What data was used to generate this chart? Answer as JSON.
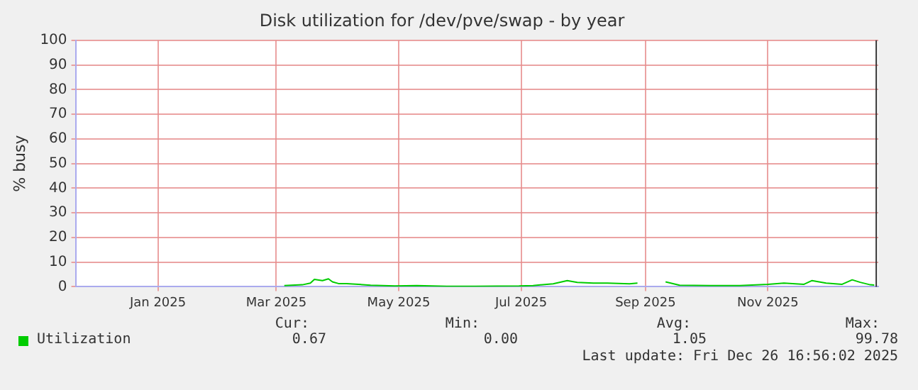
{
  "chart_data": {
    "type": "line",
    "title": "Disk utilization for /dev/pve/swap - by year",
    "ylabel": "% busy",
    "xlim": [
      "2024-11-21",
      "2025-12-26"
    ],
    "xticks": [
      {
        "value": "2025-01-01",
        "label": "Jan 2025"
      },
      {
        "value": "2025-03-01",
        "label": "Mar 2025"
      },
      {
        "value": "2025-05-01",
        "label": "May 2025"
      },
      {
        "value": "2025-07-01",
        "label": "Jul 2025"
      },
      {
        "value": "2025-09-01",
        "label": "Sep 2025"
      },
      {
        "value": "2025-11-01",
        "label": "Nov 2025"
      }
    ],
    "ylim": [
      0,
      100
    ],
    "yticks": [
      0,
      10,
      20,
      30,
      40,
      50,
      60,
      70,
      80,
      90,
      100
    ],
    "grid": true,
    "legend": "bottom left",
    "x": [
      "2025-03-05",
      "2025-03-14",
      "2025-03-18",
      "2025-03-20",
      "2025-03-24",
      "2025-03-27",
      "2025-03-29",
      "2025-04-01",
      "2025-04-05",
      "2025-04-11",
      "2025-04-17",
      "2025-04-29",
      "2025-05-10",
      "2025-05-25",
      "2025-06-08",
      "2025-06-30",
      "2025-07-07",
      "2025-07-17",
      "2025-07-24",
      "2025-07-29",
      "2025-08-06",
      "2025-08-13",
      "2025-08-24",
      "2025-08-28",
      "2025-09-03",
      "2025-09-11",
      "2025-09-18",
      "2025-10-03",
      "2025-10-18",
      "2025-11-01",
      "2025-11-09",
      "2025-11-19",
      "2025-11-23",
      "2025-11-30",
      "2025-12-08",
      "2025-12-13",
      "2025-12-17",
      "2025-12-22",
      "2025-12-24"
    ],
    "series": [
      {
        "name": "Utilization",
        "color": "#00cc00",
        "values": [
          0.5,
          0.8,
          1.5,
          3,
          2.5,
          3.2,
          2,
          1.3,
          1.3,
          1,
          0.6,
          0.3,
          0.5,
          0.2,
          0.2,
          0.3,
          0.5,
          1.2,
          2.5,
          1.8,
          1.5,
          1.5,
          1.2,
          1.5,
          null,
          2,
          0.6,
          0.5,
          0.5,
          1,
          1.5,
          1,
          2.5,
          1.5,
          1,
          2.8,
          1.8,
          0.8,
          0.7
        ]
      }
    ],
    "ref_lines": [
      {
        "axis": "x",
        "value": "2025-12-25",
        "color": "#333333"
      }
    ],
    "annotations": [
      "Cur:",
      "Min:",
      "Avg:",
      "Max:",
      "0.67",
      "0.00",
      "1.05",
      "99.78",
      "Last update: Fri Dec 26 16:56:02 2025"
    ]
  }
}
